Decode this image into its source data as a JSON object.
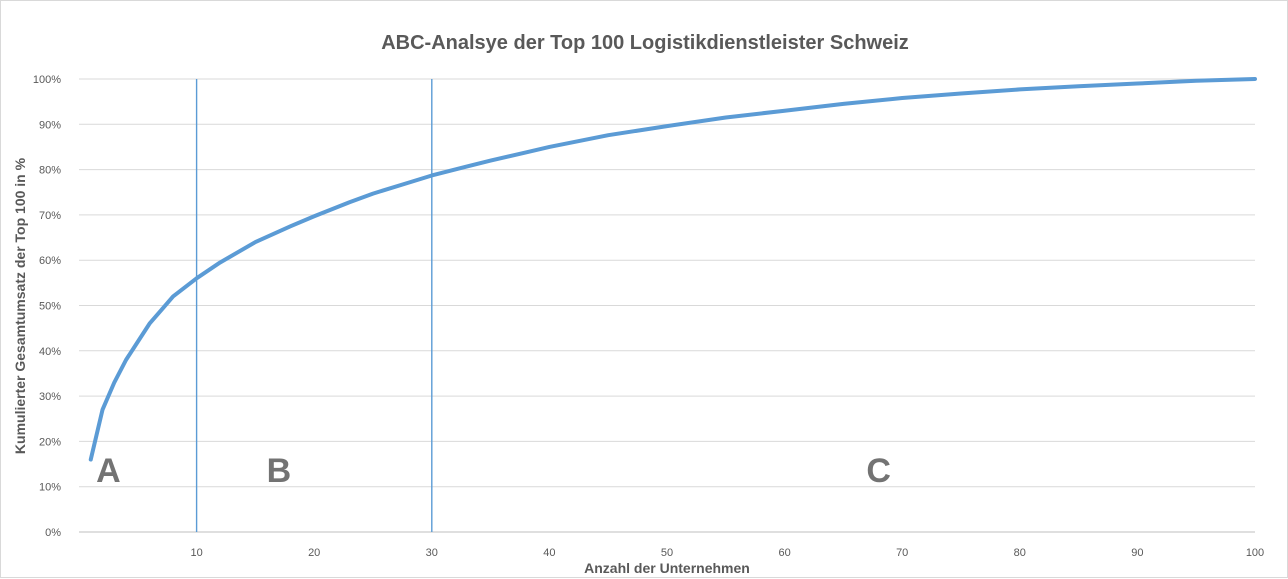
{
  "chart_data": {
    "type": "line",
    "title": "ABC-Analsye der Top 100 Logistikdienstleister Schweiz",
    "xlabel": "Anzahl der Unternehmen",
    "ylabel": "Kumulierter Gesamtumsatz der Top 100 in %",
    "xlim": [
      0,
      100
    ],
    "ylim": [
      0,
      100
    ],
    "x_ticks": [
      10,
      20,
      30,
      40,
      50,
      60,
      70,
      80,
      90,
      100
    ],
    "x_tick_labels": [
      "10",
      "20",
      "30",
      "40",
      "50",
      "60",
      "70",
      "80",
      "90",
      "100"
    ],
    "y_ticks": [
      0,
      10,
      20,
      30,
      40,
      50,
      60,
      70,
      80,
      90,
      100
    ],
    "y_tick_labels": [
      "0%",
      "10%",
      "20%",
      "30%",
      "40%",
      "50%",
      "60%",
      "70%",
      "80%",
      "90%",
      "100%"
    ],
    "grid": true,
    "legend": "none",
    "line_color": "#5b9bd5",
    "series": [
      {
        "x": [
          1,
          2,
          3,
          4,
          5,
          6,
          7,
          8,
          10,
          12,
          15,
          18,
          20,
          23,
          25,
          28,
          30,
          33,
          35,
          38,
          40,
          45,
          50,
          55,
          60,
          65,
          70,
          75,
          80,
          85,
          90,
          95,
          100
        ],
        "values": [
          16,
          27,
          33,
          38,
          42,
          46,
          49,
          52,
          56,
          59.5,
          64,
          67.5,
          69.7,
          72.8,
          74.7,
          77.1,
          78.7,
          80.7,
          82,
          83.8,
          85,
          87.6,
          89.6,
          91.5,
          93,
          94.5,
          95.8,
          96.8,
          97.7,
          98.4,
          99,
          99.6,
          100
        ]
      }
    ],
    "vertical_lines": [
      10,
      30
    ],
    "annotations": [
      {
        "text": "A",
        "x": 2.5,
        "y": 13
      },
      {
        "text": "B",
        "x": 17,
        "y": 13
      },
      {
        "text": "C",
        "x": 68,
        "y": 13
      }
    ]
  }
}
